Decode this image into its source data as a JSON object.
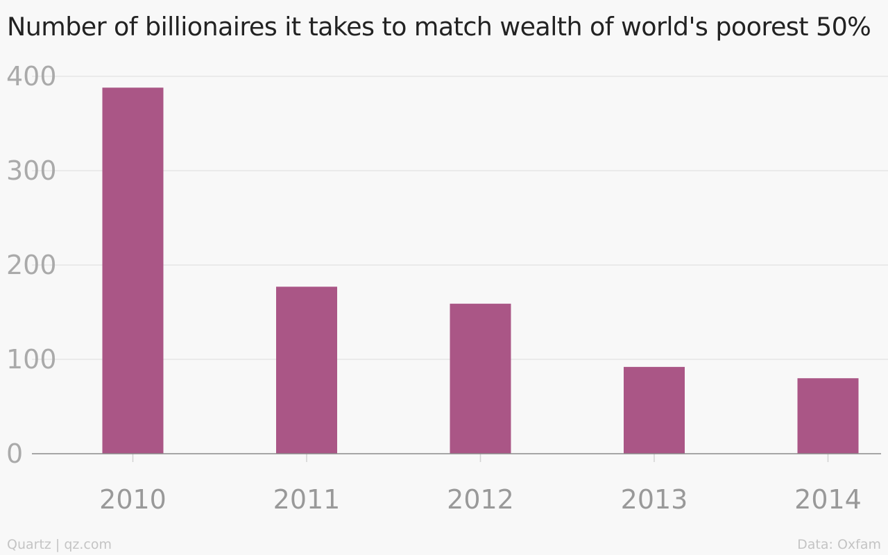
{
  "chart_data": {
    "type": "bar",
    "title": "Number of billionaires it takes to match wealth of world's poorest 50%",
    "xlabel": "",
    "ylabel": "",
    "categories": [
      "2010",
      "2011",
      "2012",
      "2013",
      "2014"
    ],
    "values": [
      388,
      177,
      159,
      92,
      80
    ],
    "ylim": [
      0,
      400
    ],
    "yticks": [
      "0",
      "100",
      "200",
      "300",
      "400"
    ],
    "grid": true,
    "legend": "none",
    "bar_color": "#aa5686"
  },
  "footer": {
    "source_left": "Quartz | qz.com",
    "source_right": "Data: Oxfam"
  }
}
